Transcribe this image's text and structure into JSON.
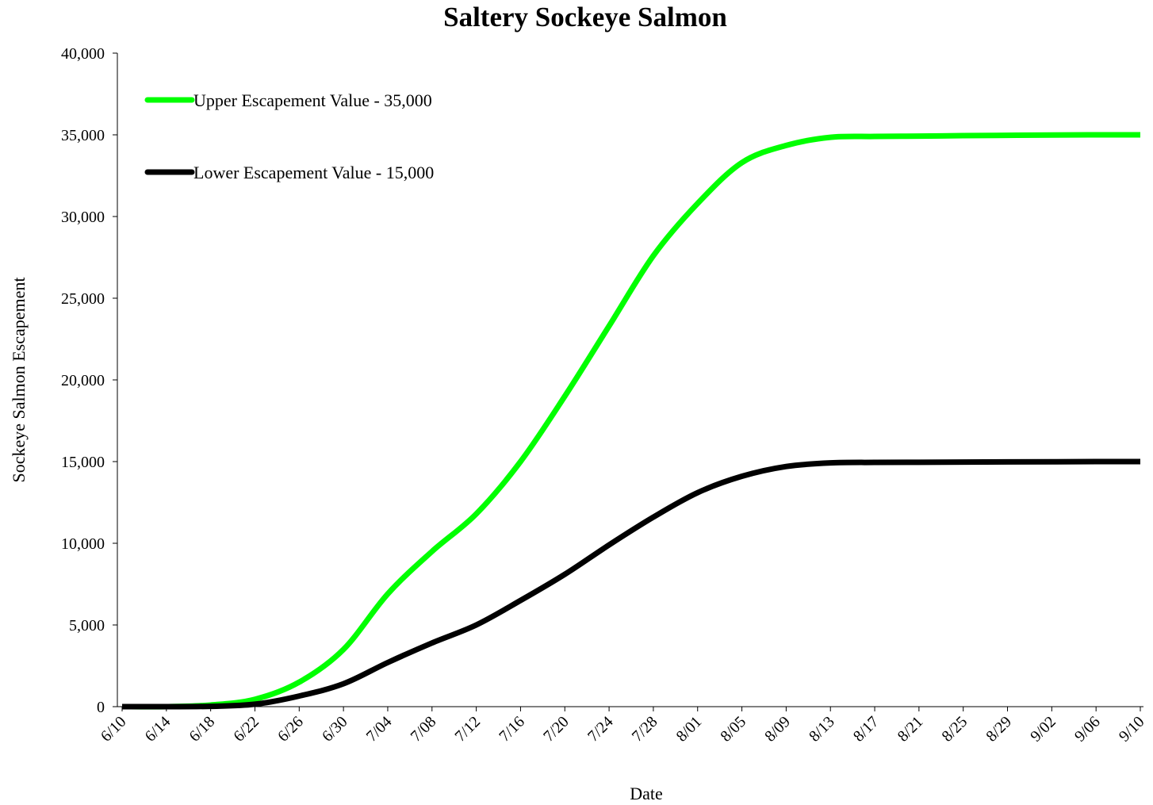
{
  "chart_data": {
    "type": "line",
    "title": "Saltery Sockeye Salmon",
    "x_label": "Date",
    "y_label": "Sockeye Salmon Escapement",
    "categories": [
      "6/10",
      "6/14",
      "6/18",
      "6/22",
      "6/26",
      "6/30",
      "7/04",
      "7/08",
      "7/12",
      "7/16",
      "7/20",
      "7/24",
      "7/28",
      "8/01",
      "8/05",
      "8/09",
      "8/13",
      "8/17",
      "8/21",
      "8/25",
      "8/29",
      "9/02",
      "9/06",
      "9/10"
    ],
    "series": [
      {
        "name": "Upper Escapement Value - 35,000",
        "color": "#00ff00",
        "values": [
          0,
          0,
          100,
          450,
          1500,
          3500,
          6900,
          9500,
          11800,
          15000,
          19000,
          23300,
          27600,
          30800,
          33300,
          34350,
          34850,
          34900,
          34920,
          34950,
          34970,
          34990,
          35000,
          35000
        ]
      },
      {
        "name": "Lower Escapement Value - 15,000",
        "color": "#000000",
        "values": [
          0,
          0,
          20,
          150,
          650,
          1400,
          2700,
          3900,
          5000,
          6500,
          8100,
          9900,
          11600,
          13100,
          14100,
          14700,
          14920,
          14950,
          14960,
          14970,
          14980,
          14990,
          15000,
          15000
        ]
      }
    ],
    "ylim": [
      0,
      40000
    ],
    "yticks": [
      0,
      {
        "value": 5000,
        "label": "5,000"
      },
      {
        "value": 10000,
        "label": "10,000"
      },
      {
        "value": 15000,
        "label": "15,000"
      },
      {
        "value": 20000,
        "label": "20,000"
      },
      {
        "value": 25000,
        "label": "25,000"
      },
      {
        "value": 30000,
        "label": "30,000"
      },
      {
        "value": 35000,
        "label": "35,000"
      },
      {
        "value": 40000,
        "label": "40,000"
      }
    ],
    "grid": false,
    "legend": "upper left"
  }
}
